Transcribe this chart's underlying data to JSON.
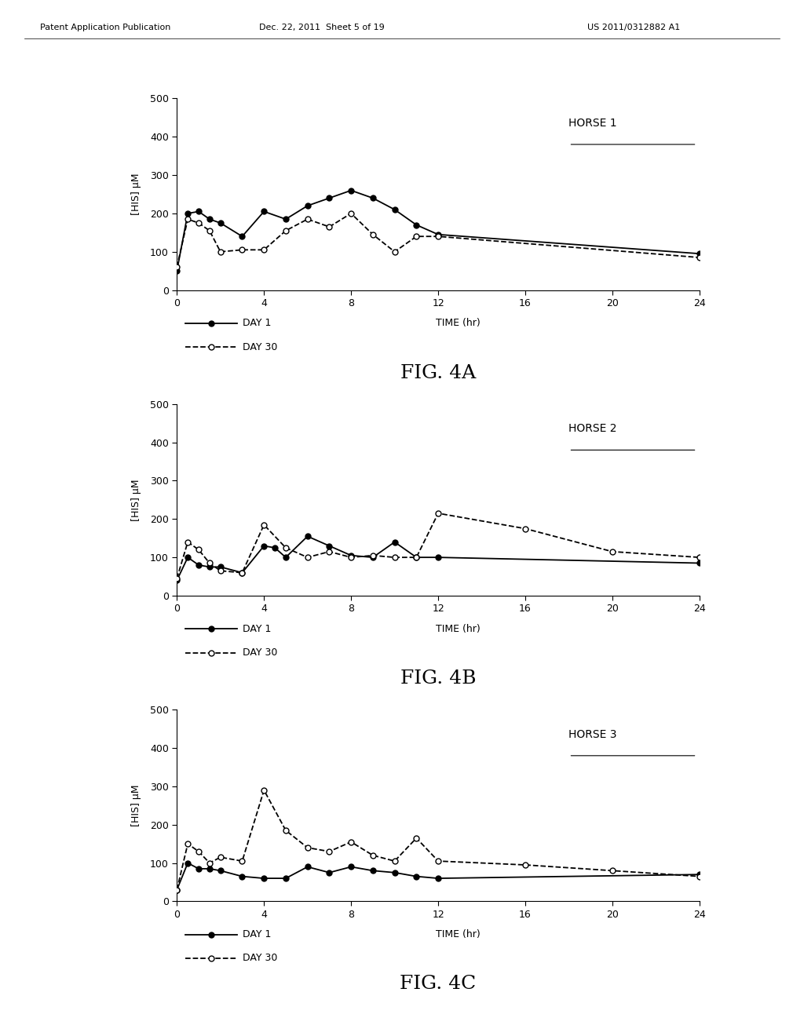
{
  "header_left": "Patent Application Publication",
  "header_mid": "Dec. 22, 2011  Sheet 5 of 19",
  "header_right": "US 2011/0312882 A1",
  "charts": [
    {
      "title": "HORSE 1",
      "fig_label": "FIG. 4A",
      "day1_x": [
        0,
        0.5,
        1,
        1.5,
        2,
        3,
        4,
        5,
        6,
        7,
        8,
        9,
        10,
        11,
        12,
        24
      ],
      "day1_y": [
        50,
        200,
        205,
        185,
        175,
        140,
        205,
        185,
        220,
        240,
        260,
        240,
        210,
        170,
        145,
        95
      ],
      "day30_x": [
        0,
        0.5,
        1,
        1.5,
        2,
        3,
        4,
        5,
        6,
        7,
        8,
        9,
        10,
        11,
        12,
        24
      ],
      "day30_y": [
        60,
        185,
        175,
        155,
        100,
        105,
        105,
        155,
        185,
        165,
        200,
        145,
        100,
        140,
        140,
        85
      ],
      "ylim": [
        0,
        500
      ],
      "yticks": [
        0,
        100,
        200,
        300,
        400,
        500
      ],
      "xticks": [
        0,
        4,
        8,
        12,
        16,
        20,
        24
      ]
    },
    {
      "title": "HORSE 2",
      "fig_label": "FIG. 4B",
      "day1_x": [
        0,
        0.5,
        1,
        1.5,
        2,
        3,
        4,
        4.5,
        5,
        6,
        7,
        8,
        9,
        10,
        11,
        12,
        24
      ],
      "day1_y": [
        40,
        100,
        80,
        75,
        75,
        60,
        130,
        125,
        100,
        155,
        130,
        105,
        100,
        140,
        100,
        100,
        85
      ],
      "day30_x": [
        0,
        0.5,
        1,
        1.5,
        2,
        3,
        4,
        5,
        6,
        7,
        8,
        9,
        10,
        11,
        12,
        16,
        20,
        24
      ],
      "day30_y": [
        45,
        140,
        120,
        85,
        65,
        60,
        185,
        125,
        100,
        115,
        100,
        105,
        100,
        100,
        215,
        175,
        115,
        100
      ],
      "ylim": [
        0,
        500
      ],
      "yticks": [
        0,
        100,
        200,
        300,
        400,
        500
      ],
      "xticks": [
        0,
        4,
        8,
        12,
        16,
        20,
        24
      ]
    },
    {
      "title": "HORSE 3",
      "fig_label": "FIG. 4C",
      "day1_x": [
        0,
        0.5,
        1,
        1.5,
        2,
        3,
        4,
        5,
        6,
        7,
        8,
        9,
        10,
        11,
        12,
        24
      ],
      "day1_y": [
        30,
        100,
        85,
        85,
        80,
        65,
        60,
        60,
        90,
        75,
        90,
        80,
        75,
        65,
        60,
        70
      ],
      "day30_x": [
        0,
        0.5,
        1,
        1.5,
        2,
        3,
        4,
        5,
        6,
        7,
        8,
        9,
        10,
        11,
        12,
        16,
        20,
        24
      ],
      "day30_y": [
        30,
        150,
        130,
        100,
        115,
        105,
        290,
        185,
        140,
        130,
        155,
        120,
        105,
        165,
        105,
        95,
        80,
        65
      ],
      "ylim": [
        0,
        500
      ],
      "yticks": [
        0,
        100,
        200,
        300,
        400,
        500
      ],
      "xticks": [
        0,
        4,
        8,
        12,
        16,
        20,
        24
      ]
    }
  ],
  "ylabel": "[HIS] μM",
  "xlabel": "TIME (hr)",
  "legend_day1": "DAY 1",
  "legend_day30": "DAY 30",
  "bg_color": "#ffffff",
  "line_color": "#000000",
  "title_fontsize": 10,
  "label_fontsize": 9,
  "tick_fontsize": 9,
  "fig_label_fontsize": 18,
  "header_fontsize": 8
}
